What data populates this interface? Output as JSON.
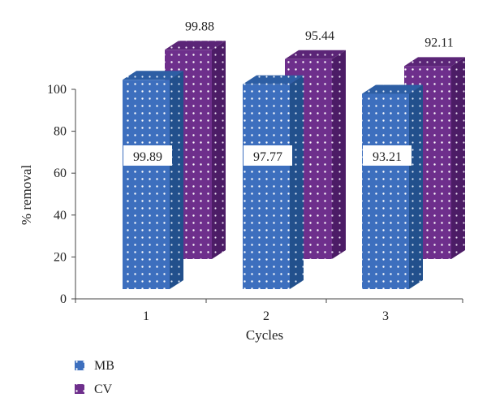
{
  "chart_data": {
    "type": "bar",
    "style": "3d-offset-dotted",
    "title": "",
    "xlabel": "Cycles",
    "ylabel": "% removal",
    "categories": [
      "1",
      "2",
      "3"
    ],
    "ylim": [
      0,
      100
    ],
    "yticks": [
      0,
      20,
      40,
      60,
      80,
      100
    ],
    "grid": false,
    "legend_position": "bottom-left",
    "series": [
      {
        "name": "MB",
        "values": [
          99.89,
          97.77,
          93.21
        ],
        "color": "#3d6fbe",
        "labels": [
          "99.89",
          "97.77",
          "93.21"
        ]
      },
      {
        "name": "CV",
        "values": [
          99.88,
          95.44,
          92.11
        ],
        "color": "#6e2f8c",
        "labels": [
          "99.88",
          "95.44",
          "92.11"
        ]
      }
    ]
  }
}
